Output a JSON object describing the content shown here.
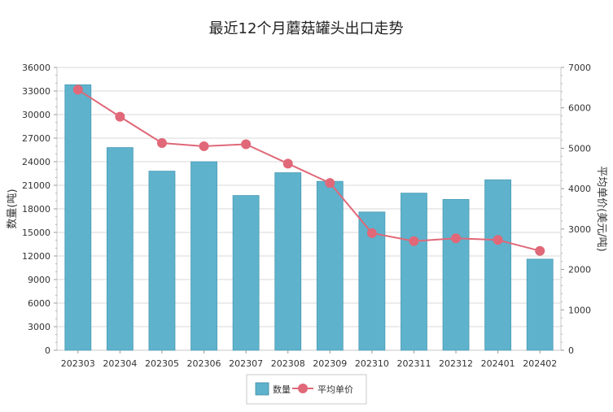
{
  "chart_data": {
    "type": "bar+line",
    "title": "最近12个月蘑菇罐头出口走势",
    "categories": [
      "202303",
      "202304",
      "202305",
      "202306",
      "202307",
      "202308",
      "202309",
      "202310",
      "202311",
      "202312",
      "202401",
      "202402"
    ],
    "series": [
      {
        "name": "数量",
        "type": "bar",
        "axis": "left",
        "color": "#5eb2cc",
        "values": [
          33800,
          25800,
          22800,
          24000,
          19700,
          22600,
          21500,
          17600,
          20000,
          19200,
          21700,
          11600
        ]
      },
      {
        "name": "平均单价",
        "type": "line",
        "axis": "right",
        "color": "#e06878",
        "values": [
          6450,
          5780,
          5130,
          5050,
          5100,
          4620,
          4140,
          2900,
          2700,
          2770,
          2730,
          2460
        ]
      }
    ],
    "y_left": {
      "label": "数量(吨)",
      "min": 0,
      "max": 36000,
      "ticks": [
        "0",
        "3000",
        "6000",
        "9000",
        "12000",
        "15000",
        "18000",
        "21000",
        "24000",
        "27000",
        "30000",
        "33000",
        "36000"
      ]
    },
    "y_right": {
      "label": "平均单价(美元/吨)",
      "min": 0,
      "max": 7000,
      "ticks": [
        "0",
        "1000",
        "2000",
        "3000",
        "4000",
        "5000",
        "6000",
        "7000"
      ]
    },
    "grid": true,
    "legend_position": "bottom-center"
  }
}
